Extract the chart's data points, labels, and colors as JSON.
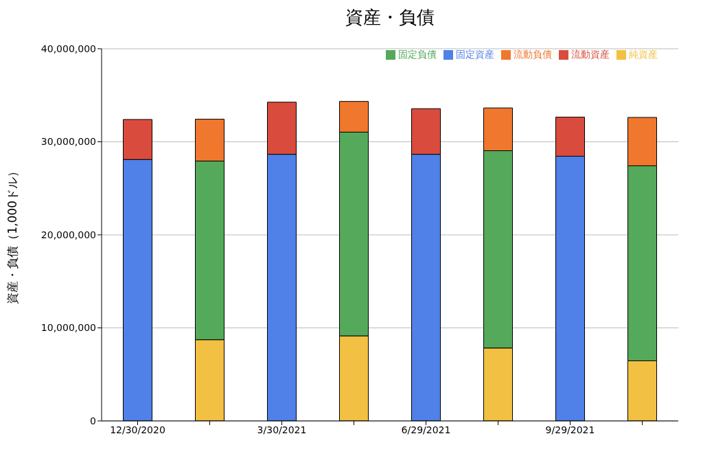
{
  "chart_data": {
    "type": "bar",
    "title": "資産・負債",
    "ylabel": "資産・負債（1,000ドル）",
    "stacked": true,
    "categories": [
      "12/30/2020",
      null,
      "3/30/2021",
      null,
      "6/29/2021",
      null,
      "9/29/2021",
      null
    ],
    "series": [
      {
        "name": "固定資産",
        "color": "#4f81e8",
        "values": [
          28100000,
          null,
          28660000,
          null,
          28660000,
          null,
          28450000,
          null
        ]
      },
      {
        "name": "流動資産",
        "color": "#d94c3d",
        "values": [
          4300000,
          null,
          5600000,
          null,
          4900000,
          null,
          4200000,
          null
        ]
      },
      {
        "name": "純資産",
        "color": "#f2c042",
        "values": [
          null,
          8730000,
          null,
          9140000,
          null,
          7840000,
          null,
          6460000
        ]
      },
      {
        "name": "固定負債",
        "color": "#55a95b",
        "values": [
          null,
          19200000,
          null,
          21900000,
          null,
          21200000,
          null,
          20960000
        ]
      },
      {
        "name": "流動負債",
        "color": "#ef772e",
        "values": [
          null,
          4500000,
          null,
          3300000,
          null,
          4600000,
          null,
          5200000
        ]
      }
    ],
    "ylim": [
      0,
      40000000
    ],
    "yticks": [
      {
        "value": 0,
        "label": "0"
      },
      {
        "value": 10000000,
        "label": "10,000,000"
      },
      {
        "value": 20000000,
        "label": "20,000,000"
      },
      {
        "value": 30000000,
        "label": "30,000,000"
      },
      {
        "value": 40000000,
        "label": "40,000,000"
      }
    ],
    "grid": "y",
    "legend": "top right"
  }
}
